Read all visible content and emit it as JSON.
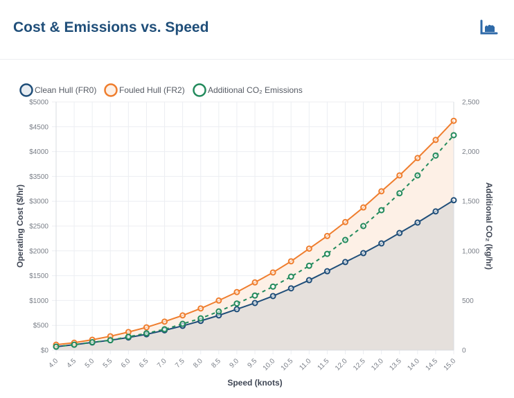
{
  "header": {
    "title": "Cost & Emissions vs. Speed",
    "icon": "area-chart-icon"
  },
  "chart_data": {
    "type": "line",
    "title": "",
    "xlabel": "Speed (knots)",
    "ylabel": "Operating Cost ($/hr)",
    "y2label": "Additional CO₂ (kg/hr)",
    "x": [
      4.0,
      4.5,
      5.0,
      5.5,
      6.0,
      6.5,
      7.0,
      7.5,
      8.0,
      8.5,
      9.0,
      9.5,
      10.0,
      10.5,
      11.0,
      11.5,
      12.0,
      12.5,
      13.0,
      13.5,
      14.0,
      14.5,
      15.0
    ],
    "x_tick_labels": [
      "4.0",
      "4.5",
      "5.0",
      "5.5",
      "6.0",
      "6.5",
      "7.0",
      "7.5",
      "8.0",
      "8.5",
      "9.0",
      "9.5",
      "10.0",
      "10.5",
      "11.0",
      "11.5",
      "12.0",
      "12.5",
      "13.0",
      "13.5",
      "14.0",
      "14.5",
      "15.0"
    ],
    "ylim": [
      0,
      5000
    ],
    "y_tick_labels": [
      "$0",
      "$500",
      "$1000",
      "$1500",
      "$2000",
      "$2500",
      "$3000",
      "$3500",
      "$4000",
      "$4500",
      "$5000"
    ],
    "y2lim": [
      0,
      2500
    ],
    "y2_tick_labels": [
      "0",
      "500",
      "1,000",
      "1,500",
      "2,000",
      "2,500"
    ],
    "grid": true,
    "legend_position": "top-left",
    "series": [
      {
        "name": "Clean Hull (FR0)",
        "axis": "left",
        "color": "#1f4e79",
        "fill": "#e5e0dc",
        "style": "solid",
        "values": [
          70,
          110,
          155,
          200,
          255,
          320,
          400,
          490,
          590,
          700,
          825,
          950,
          1090,
          1245,
          1410,
          1590,
          1775,
          1955,
          2150,
          2360,
          2570,
          2795,
          3020
        ]
      },
      {
        "name": "Fouled Hull (FR2)",
        "axis": "left",
        "color": "#ef7d2d",
        "fill": "#fdf0e6",
        "style": "solid",
        "values": [
          110,
          150,
          210,
          280,
          365,
          460,
          575,
          700,
          840,
          1000,
          1170,
          1365,
          1565,
          1790,
          2045,
          2300,
          2580,
          2875,
          3200,
          3520,
          3870,
          4235,
          4620
        ]
      },
      {
        "name": "Additional CO₂ Emissions",
        "axis": "right",
        "color": "#228a5c",
        "fill": "none",
        "style": "dashed",
        "values": [
          35,
          55,
          80,
          100,
          135,
          170,
          210,
          265,
          320,
          390,
          470,
          550,
          640,
          740,
          850,
          970,
          1110,
          1250,
          1410,
          1580,
          1760,
          1960,
          2165
        ]
      }
    ]
  }
}
